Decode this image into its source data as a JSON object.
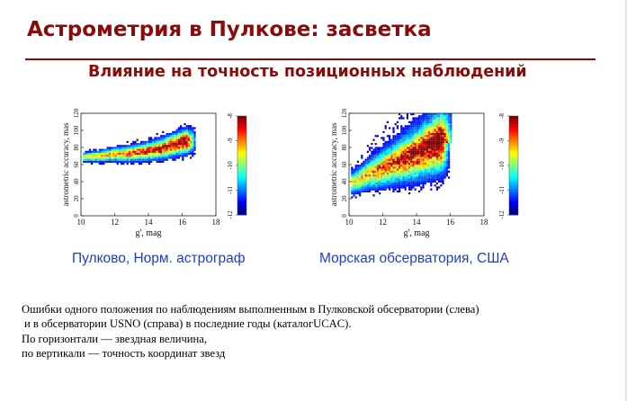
{
  "slide": {
    "title": "Астрометрия в Пулкове: засветка",
    "subtitle": "Влияние на точность позиционных наблюдений",
    "caption_left": "Пулково, Норм. астрограф",
    "caption_right": "Морская обсерватория, США",
    "description": [
      "Ошибки одного положения по наблюдениям выполненным в Пулковской обсерватории (слева)",
      "и в обсерватории USNO (справа) в последние годы (каталогUCAC).",
      "По горизонтали — звездная величина,",
      "по вертикали — точность координат звезд"
    ]
  },
  "chart_data": [
    {
      "type": "heatmap",
      "xlabel": "g', mag",
      "ylabel": "astrometric accuracy, mas",
      "xlim": [
        10,
        18
      ],
      "ylim": [
        0,
        120
      ],
      "xticks": [
        "10",
        "12",
        "14",
        "16",
        "18"
      ],
      "yticks": [
        "0",
        "20",
        "40",
        "60",
        "80",
        "100",
        "120"
      ],
      "colorbar": {
        "ticks": [
          "-8",
          "-9",
          "-10",
          "-11",
          "-12"
        ],
        "range": [
          -12,
          -8
        ]
      },
      "density_ridge": [
        {
          "x": 10.2,
          "y": 70
        },
        {
          "x": 11,
          "y": 71
        },
        {
          "x": 12,
          "y": 73
        },
        {
          "x": 13,
          "y": 74
        },
        {
          "x": 14,
          "y": 77
        },
        {
          "x": 14.8,
          "y": 80
        },
        {
          "x": 15.6,
          "y": 85
        },
        {
          "x": 16.2,
          "y": 88
        }
      ]
    },
    {
      "type": "heatmap",
      "xlabel": "g', mag",
      "ylabel": "astrometric accuracy, mas",
      "xlim": [
        10,
        18
      ],
      "ylim": [
        0,
        120
      ],
      "xticks": [
        "10",
        "12",
        "14",
        "16",
        "18"
      ],
      "yticks": [
        "0",
        "20",
        "40",
        "60",
        "80",
        "100",
        "120"
      ],
      "colorbar": {
        "ticks": [
          "-8",
          "-9",
          "-10",
          "-11",
          "-12"
        ],
        "range": [
          -12,
          -8
        ]
      },
      "density_ridge": [
        {
          "x": 10.2,
          "y": 40
        },
        {
          "x": 11,
          "y": 48
        },
        {
          "x": 12,
          "y": 56
        },
        {
          "x": 13,
          "y": 64
        },
        {
          "x": 14,
          "y": 72
        },
        {
          "x": 14.8,
          "y": 80
        },
        {
          "x": 15.4,
          "y": 86
        }
      ]
    }
  ]
}
